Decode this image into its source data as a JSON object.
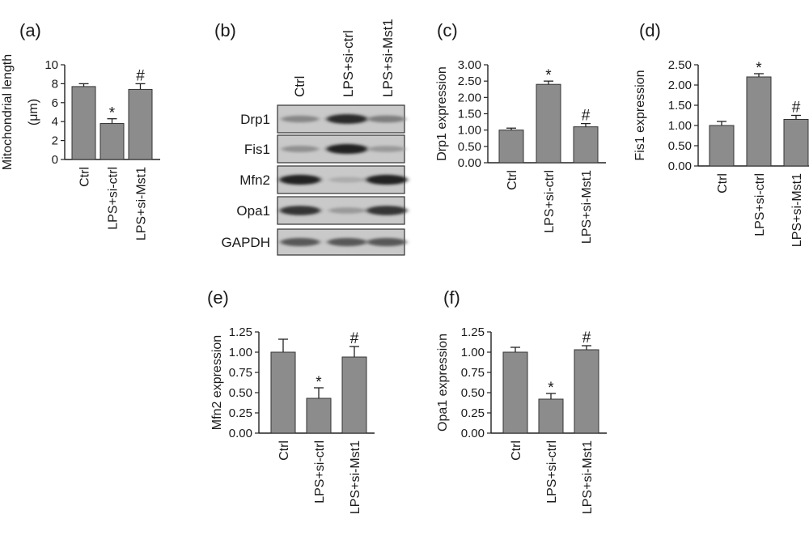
{
  "chart_data": [
    {
      "panel": "(a)",
      "type": "bar",
      "categories": [
        "Ctrl",
        "LPS+si-ctrl",
        "LPS+si-Mst1"
      ],
      "values": [
        7.7,
        3.8,
        7.4
      ],
      "errors": [
        0.3,
        0.5,
        0.6
      ],
      "significance": [
        "",
        "*",
        "#"
      ],
      "ylabel": "Mitochondrial length",
      "ylabel2": "(μm)",
      "ylim": [
        0,
        10
      ],
      "yticks": [
        "0",
        "2",
        "4",
        "6",
        "8",
        "10"
      ],
      "bar_color": "#8c8c8c"
    },
    {
      "panel": "(c)",
      "type": "bar",
      "categories": [
        "Ctrl",
        "LPS+si-ctrl",
        "LPS+si-Mst1"
      ],
      "values": [
        1.0,
        2.4,
        1.1
      ],
      "errors": [
        0.06,
        0.1,
        0.1
      ],
      "significance": [
        "",
        "*",
        "#"
      ],
      "ylabel": "Drp1 expression",
      "ylim": [
        0,
        3.0
      ],
      "yticks": [
        "0.00",
        "0.50",
        "1.00",
        "1.50",
        "2.00",
        "2.50",
        "3.00"
      ],
      "bar_color": "#8c8c8c"
    },
    {
      "panel": "(d)",
      "type": "bar",
      "categories": [
        "Ctrl",
        "LPS+si-ctrl",
        "LPS+si-Mst1"
      ],
      "values": [
        1.0,
        2.2,
        1.15
      ],
      "errors": [
        0.1,
        0.08,
        0.1
      ],
      "significance": [
        "",
        "*",
        "#"
      ],
      "ylabel": "Fis1 expression",
      "ylim": [
        0,
        2.5
      ],
      "yticks": [
        "0.00",
        "0.50",
        "1.00",
        "1.50",
        "2.00",
        "2.50"
      ],
      "bar_color": "#8c8c8c"
    },
    {
      "panel": "(e)",
      "type": "bar",
      "categories": [
        "Ctrl",
        "LPS+si-ctrl",
        "LPS+si-Mst1"
      ],
      "values": [
        1.0,
        0.43,
        0.94
      ],
      "errors": [
        0.16,
        0.13,
        0.13
      ],
      "significance": [
        "",
        "*",
        "#"
      ],
      "ylabel": "Mfn2 expression",
      "ylim": [
        0,
        1.25
      ],
      "yticks": [
        "0.00",
        "0.25",
        "0.50",
        "0.75",
        "1.00",
        "1.25"
      ],
      "bar_color": "#8c8c8c"
    },
    {
      "panel": "(f)",
      "type": "bar",
      "categories": [
        "Ctrl",
        "LPS+si-ctrl",
        "LPS+si-Mst1"
      ],
      "values": [
        1.0,
        0.42,
        1.03
      ],
      "errors": [
        0.06,
        0.07,
        0.05
      ],
      "significance": [
        "",
        "*",
        "#"
      ],
      "ylabel": "Opa1 expression",
      "ylim": [
        0,
        1.25
      ],
      "yticks": [
        "0.00",
        "0.25",
        "0.50",
        "0.75",
        "1.00",
        "1.25"
      ],
      "bar_color": "#8c8c8c"
    }
  ],
  "blot": {
    "panel": "(b)",
    "lanes": [
      "Ctrl",
      "LPS+si-ctrl",
      "LPS+si-Mst1"
    ],
    "rows": [
      {
        "label": "Drp1",
        "intensity": [
          0.35,
          0.85,
          0.4
        ]
      },
      {
        "label": "Fis1",
        "intensity": [
          0.3,
          0.9,
          0.25
        ]
      },
      {
        "label": "Mfn2",
        "intensity": [
          0.9,
          0.15,
          0.9
        ]
      },
      {
        "label": "Opa1",
        "intensity": [
          0.8,
          0.25,
          0.8
        ]
      },
      {
        "label": "GAPDH",
        "intensity": [
          0.6,
          0.6,
          0.6
        ]
      }
    ]
  }
}
